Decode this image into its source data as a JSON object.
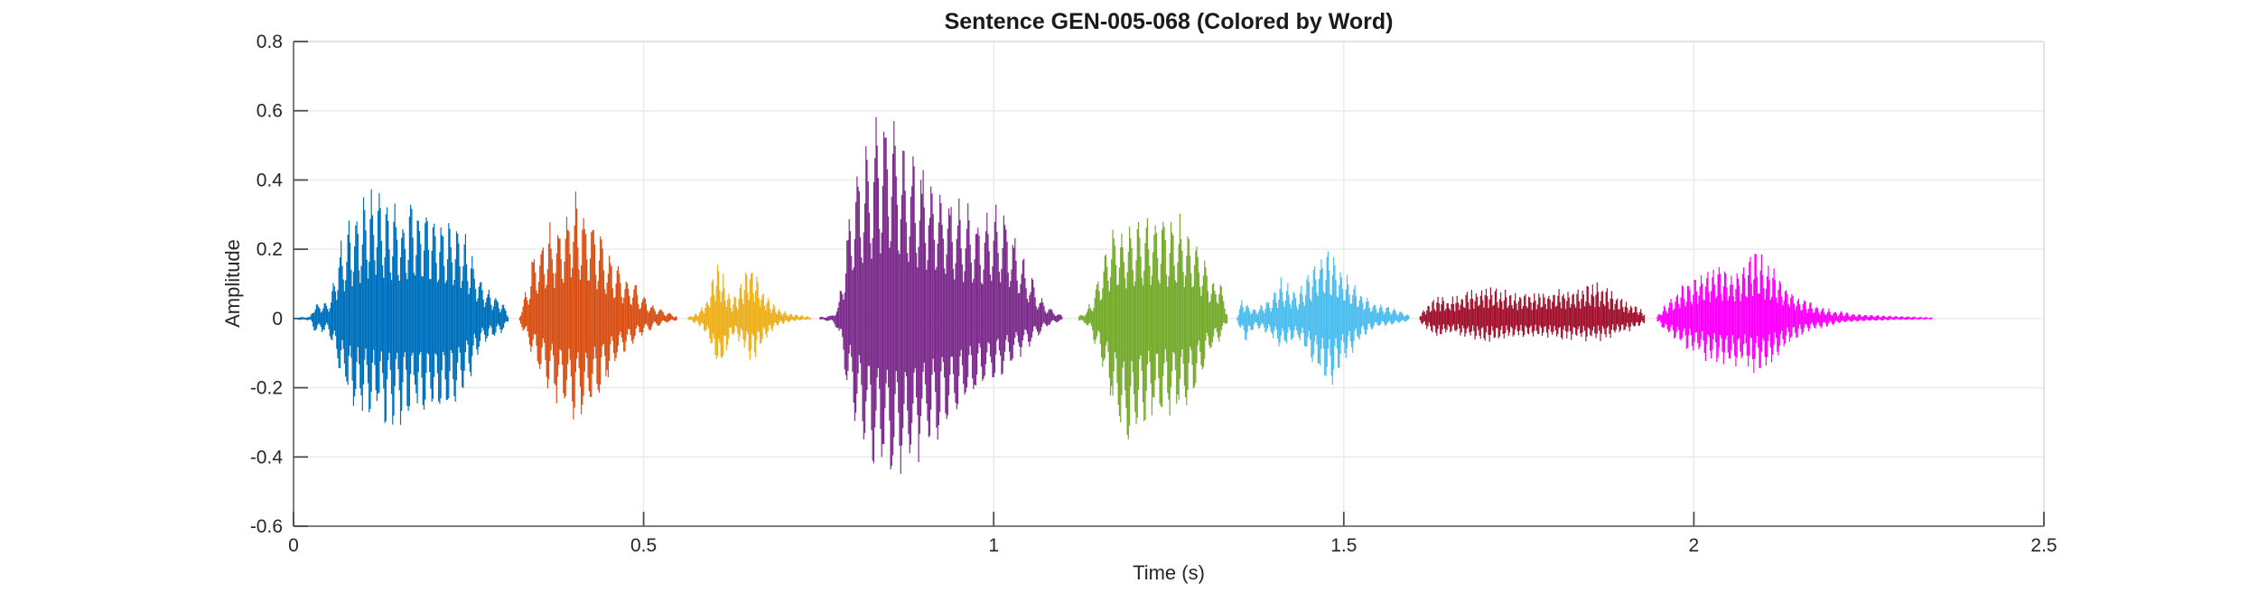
{
  "chart_data": {
    "type": "line",
    "subtype": "audio-waveform",
    "title": "Sentence GEN-005-068 (Colored by Word)",
    "xlabel": "Time (s)",
    "ylabel": "Amplitude",
    "xlim": [
      0,
      2.5
    ],
    "ylim": [
      -0.6,
      0.8
    ],
    "xticks": [
      0,
      0.5,
      1,
      1.5,
      2,
      2.5
    ],
    "xtick_labels": [
      "0",
      "0.5",
      "1",
      "1.5",
      "2",
      "2.5"
    ],
    "yticks": [
      -0.6,
      -0.4,
      -0.2,
      0,
      0.2,
      0.4,
      0.6,
      0.8
    ],
    "ytick_labels": [
      "-0.6",
      "-0.4",
      "-0.2",
      "0",
      "0.2",
      "0.4",
      "0.6",
      "0.8"
    ],
    "grid": true,
    "legend": "none",
    "series": [
      {
        "name": "word-1",
        "color": "#0072BD",
        "t_start": 0.004,
        "t_end": 0.307,
        "peak_amplitude": 0.42,
        "min_amplitude": -0.3,
        "pitch_hz": 90,
        "envelope": [
          [
            0.004,
            0.004,
            0.004
          ],
          [
            0.024,
            0.006,
            0.006
          ],
          [
            0.028,
            0.045,
            0.04
          ],
          [
            0.038,
            0.055,
            0.045
          ],
          [
            0.048,
            0.05,
            0.04
          ],
          [
            0.055,
            0.09,
            0.08
          ],
          [
            0.065,
            0.22,
            0.18
          ],
          [
            0.08,
            0.3,
            0.26
          ],
          [
            0.095,
            0.34,
            0.28
          ],
          [
            0.116,
            0.42,
            0.3
          ],
          [
            0.135,
            0.36,
            0.32
          ],
          [
            0.155,
            0.34,
            0.31
          ],
          [
            0.175,
            0.38,
            0.29
          ],
          [
            0.195,
            0.33,
            0.3
          ],
          [
            0.215,
            0.31,
            0.29
          ],
          [
            0.235,
            0.3,
            0.27
          ],
          [
            0.252,
            0.22,
            0.18
          ],
          [
            0.268,
            0.12,
            0.09
          ],
          [
            0.285,
            0.08,
            0.06
          ],
          [
            0.3,
            0.05,
            0.04
          ],
          [
            0.307,
            0.01,
            0.01
          ]
        ]
      },
      {
        "name": "word-2",
        "color": "#D95319",
        "t_start": 0.323,
        "t_end": 0.548,
        "peak_amplitude": 0.4,
        "min_amplitude": -0.32,
        "pitch_hz": 82,
        "envelope": [
          [
            0.323,
            0.01,
            0.01
          ],
          [
            0.332,
            0.09,
            0.07
          ],
          [
            0.342,
            0.2,
            0.12
          ],
          [
            0.355,
            0.26,
            0.18
          ],
          [
            0.37,
            0.29,
            0.24
          ],
          [
            0.385,
            0.32,
            0.28
          ],
          [
            0.4,
            0.4,
            0.3
          ],
          [
            0.413,
            0.36,
            0.32
          ],
          [
            0.428,
            0.3,
            0.28
          ],
          [
            0.443,
            0.24,
            0.22
          ],
          [
            0.458,
            0.18,
            0.15
          ],
          [
            0.472,
            0.14,
            0.11
          ],
          [
            0.487,
            0.11,
            0.07
          ],
          [
            0.5,
            0.07,
            0.05
          ],
          [
            0.515,
            0.04,
            0.03
          ],
          [
            0.53,
            0.025,
            0.015
          ],
          [
            0.548,
            0.008,
            0.006
          ]
        ]
      },
      {
        "name": "word-3",
        "color": "#EDB120",
        "t_start": 0.564,
        "t_end": 0.74,
        "peak_amplitude": 0.18,
        "min_amplitude": -0.17,
        "pitch_hz": 125,
        "envelope": [
          [
            0.564,
            0.006,
            0.005
          ],
          [
            0.578,
            0.02,
            0.02
          ],
          [
            0.59,
            0.06,
            0.05
          ],
          [
            0.6,
            0.15,
            0.13
          ],
          [
            0.607,
            0.17,
            0.17
          ],
          [
            0.615,
            0.13,
            0.14
          ],
          [
            0.625,
            0.06,
            0.06
          ],
          [
            0.634,
            0.08,
            0.06
          ],
          [
            0.644,
            0.14,
            0.1
          ],
          [
            0.653,
            0.18,
            0.13
          ],
          [
            0.662,
            0.13,
            0.11
          ],
          [
            0.672,
            0.08,
            0.07
          ],
          [
            0.683,
            0.05,
            0.04
          ],
          [
            0.695,
            0.03,
            0.02
          ],
          [
            0.71,
            0.015,
            0.01
          ],
          [
            0.725,
            0.01,
            0.006
          ],
          [
            0.74,
            0.005,
            0.004
          ]
        ]
      },
      {
        "name": "word-4",
        "color": "#7E2F8E",
        "t_start": 0.752,
        "t_end": 1.098,
        "peak_amplitude": 0.65,
        "min_amplitude": -0.5,
        "pitch_hz": 76,
        "envelope": [
          [
            0.752,
            0.005,
            0.005
          ],
          [
            0.768,
            0.01,
            0.01
          ],
          [
            0.778,
            0.04,
            0.04
          ],
          [
            0.788,
            0.22,
            0.18
          ],
          [
            0.798,
            0.42,
            0.28
          ],
          [
            0.812,
            0.5,
            0.36
          ],
          [
            0.826,
            0.57,
            0.43
          ],
          [
            0.84,
            0.63,
            0.48
          ],
          [
            0.852,
            0.65,
            0.5
          ],
          [
            0.865,
            0.58,
            0.49
          ],
          [
            0.878,
            0.53,
            0.47
          ],
          [
            0.892,
            0.49,
            0.44
          ],
          [
            0.908,
            0.45,
            0.4
          ],
          [
            0.924,
            0.42,
            0.36
          ],
          [
            0.94,
            0.38,
            0.33
          ],
          [
            0.956,
            0.35,
            0.29
          ],
          [
            0.972,
            0.32,
            0.25
          ],
          [
            0.986,
            0.3,
            0.22
          ],
          [
            1.0,
            0.37,
            0.2
          ],
          [
            1.013,
            0.34,
            0.17
          ],
          [
            1.027,
            0.27,
            0.14
          ],
          [
            1.04,
            0.2,
            0.11
          ],
          [
            1.053,
            0.13,
            0.08
          ],
          [
            1.066,
            0.07,
            0.05
          ],
          [
            1.08,
            0.035,
            0.02
          ],
          [
            1.098,
            0.008,
            0.006
          ]
        ]
      },
      {
        "name": "word-5",
        "color": "#77AC30",
        "t_start": 1.122,
        "t_end": 1.334,
        "peak_amplitude": 0.32,
        "min_amplitude": -0.43,
        "pitch_hz": 84,
        "envelope": [
          [
            1.122,
            0.008,
            0.008
          ],
          [
            1.132,
            0.025,
            0.02
          ],
          [
            1.14,
            0.06,
            0.05
          ],
          [
            1.15,
            0.13,
            0.11
          ],
          [
            1.162,
            0.25,
            0.22
          ],
          [
            1.173,
            0.29,
            0.3
          ],
          [
            1.183,
            0.28,
            0.38
          ],
          [
            1.193,
            0.29,
            0.43
          ],
          [
            1.205,
            0.3,
            0.34
          ],
          [
            1.22,
            0.31,
            0.31
          ],
          [
            1.235,
            0.32,
            0.3
          ],
          [
            1.25,
            0.3,
            0.29
          ],
          [
            1.265,
            0.32,
            0.3
          ],
          [
            1.278,
            0.29,
            0.27
          ],
          [
            1.29,
            0.25,
            0.22
          ],
          [
            1.302,
            0.18,
            0.15
          ],
          [
            1.313,
            0.11,
            0.09
          ],
          [
            1.322,
            0.14,
            0.07
          ],
          [
            1.334,
            0.02,
            0.015
          ]
        ]
      },
      {
        "name": "word-6",
        "color": "#4DBEEE",
        "t_start": 1.348,
        "t_end": 1.593,
        "peak_amplitude": 0.21,
        "min_amplitude": -0.21,
        "pitch_hz": 105,
        "envelope": [
          [
            1.348,
            0.01,
            0.01
          ],
          [
            1.354,
            0.06,
            0.05
          ],
          [
            1.362,
            0.05,
            0.07
          ],
          [
            1.372,
            0.03,
            0.03
          ],
          [
            1.385,
            0.05,
            0.04
          ],
          [
            1.398,
            0.07,
            0.06
          ],
          [
            1.41,
            0.12,
            0.09
          ],
          [
            1.422,
            0.1,
            0.08
          ],
          [
            1.435,
            0.08,
            0.07
          ],
          [
            1.448,
            0.13,
            0.11
          ],
          [
            1.46,
            0.19,
            0.16
          ],
          [
            1.472,
            0.21,
            0.19
          ],
          [
            1.485,
            0.19,
            0.2
          ],
          [
            1.498,
            0.15,
            0.14
          ],
          [
            1.51,
            0.12,
            0.11
          ],
          [
            1.523,
            0.09,
            0.07
          ],
          [
            1.537,
            0.06,
            0.04
          ],
          [
            1.552,
            0.045,
            0.025
          ],
          [
            1.568,
            0.035,
            0.02
          ],
          [
            1.58,
            0.025,
            0.015
          ],
          [
            1.593,
            0.012,
            0.008
          ]
        ]
      },
      {
        "name": "word-7",
        "color": "#A2142F",
        "t_start": 1.609,
        "t_end": 1.93,
        "peak_amplitude": 0.11,
        "min_amplitude": -0.08,
        "pitch_hz": 145,
        "envelope": [
          [
            1.609,
            0.015,
            0.012
          ],
          [
            1.618,
            0.04,
            0.03
          ],
          [
            1.628,
            0.06,
            0.05
          ],
          [
            1.638,
            0.07,
            0.06
          ],
          [
            1.648,
            0.06,
            0.05
          ],
          [
            1.66,
            0.07,
            0.05
          ],
          [
            1.672,
            0.08,
            0.06
          ],
          [
            1.684,
            0.09,
            0.065
          ],
          [
            1.7,
            0.1,
            0.07
          ],
          [
            1.716,
            0.095,
            0.07
          ],
          [
            1.733,
            0.085,
            0.065
          ],
          [
            1.75,
            0.08,
            0.06
          ],
          [
            1.768,
            0.08,
            0.06
          ],
          [
            1.786,
            0.085,
            0.06
          ],
          [
            1.804,
            0.09,
            0.065
          ],
          [
            1.822,
            0.09,
            0.065
          ],
          [
            1.84,
            0.095,
            0.07
          ],
          [
            1.857,
            0.11,
            0.07
          ],
          [
            1.87,
            0.1,
            0.065
          ],
          [
            1.884,
            0.08,
            0.055
          ],
          [
            1.898,
            0.06,
            0.045
          ],
          [
            1.912,
            0.045,
            0.035
          ],
          [
            1.93,
            0.02,
            0.015
          ]
        ]
      },
      {
        "name": "word-8",
        "color": "#FF00FF",
        "t_start": 1.948,
        "t_end": 2.34,
        "peak_amplitude": 0.22,
        "min_amplitude": -0.17,
        "pitch_hz": 115,
        "envelope": [
          [
            1.948,
            0.01,
            0.01
          ],
          [
            1.958,
            0.04,
            0.04
          ],
          [
            1.97,
            0.07,
            0.06
          ],
          [
            1.982,
            0.1,
            0.08
          ],
          [
            1.995,
            0.12,
            0.1
          ],
          [
            2.008,
            0.14,
            0.12
          ],
          [
            2.02,
            0.15,
            0.13
          ],
          [
            2.033,
            0.17,
            0.14
          ],
          [
            2.046,
            0.16,
            0.15
          ],
          [
            2.06,
            0.15,
            0.16
          ],
          [
            2.073,
            0.17,
            0.15
          ],
          [
            2.085,
            0.22,
            0.16
          ],
          [
            2.098,
            0.19,
            0.17
          ],
          [
            2.11,
            0.16,
            0.14
          ],
          [
            2.123,
            0.13,
            0.11
          ],
          [
            2.136,
            0.1,
            0.08
          ],
          [
            2.15,
            0.07,
            0.06
          ],
          [
            2.165,
            0.05,
            0.04
          ],
          [
            2.182,
            0.035,
            0.03
          ],
          [
            2.2,
            0.025,
            0.02
          ],
          [
            2.22,
            0.018,
            0.012
          ],
          [
            2.25,
            0.012,
            0.008
          ],
          [
            2.29,
            0.008,
            0.005
          ],
          [
            2.34,
            0.004,
            0.003
          ]
        ]
      }
    ]
  },
  "style": {
    "background": "#ffffff",
    "grid_color": "#ebebeb",
    "box_color": "#e3e3e3",
    "axis_color": "#7f7f7f",
    "tick_color": "#4d4d4d",
    "label_color": "#262626",
    "title_color": "#1a1a1a"
  }
}
